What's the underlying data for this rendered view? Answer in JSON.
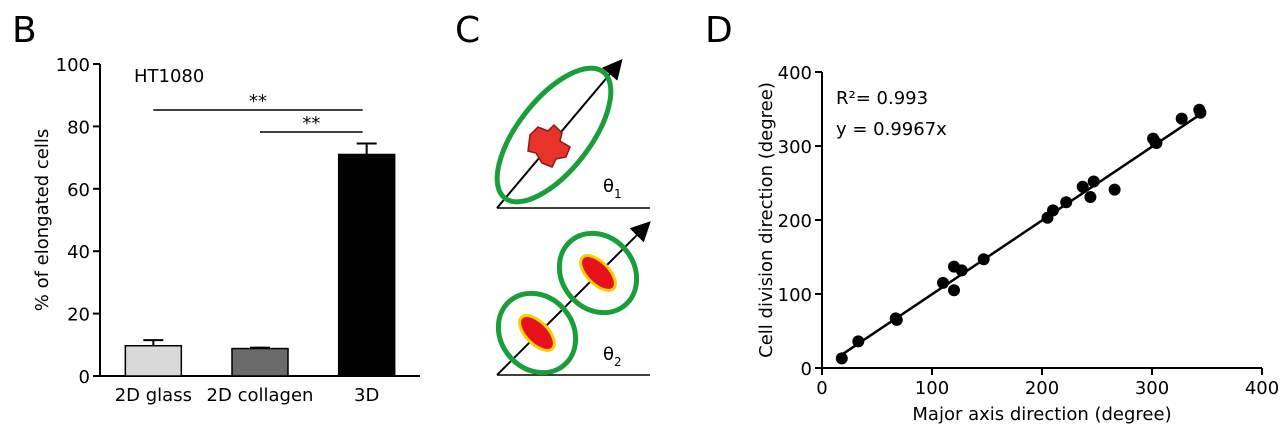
{
  "chart_data": [
    {
      "type": "bar",
      "panel": "B",
      "annotation": "HT1080",
      "ylabel": "% of elongated cells",
      "categories": [
        "2D glass",
        "2D collagen",
        "3D"
      ],
      "values": [
        9.7,
        8.8,
        71
      ],
      "errors": [
        1.8,
        0.3,
        3.5
      ],
      "colors": [
        "#d9d9d9",
        "#6b6b6b",
        "#000000"
      ],
      "ylim": [
        0,
        100
      ],
      "yticks": [
        0,
        20,
        40,
        60,
        80,
        100
      ],
      "significance": [
        {
          "label": "**",
          "between": [
            0,
            2
          ]
        },
        {
          "label": "**",
          "between": [
            1,
            2
          ]
        }
      ]
    },
    {
      "type": "scatter",
      "panel": "D",
      "xlabel": "Major axis direction (degree)",
      "ylabel": "Cell division direction (degree)",
      "annotations": [
        "R²= 0.993",
        "y = 0.9967x"
      ],
      "fit_slope": 0.9967,
      "color": "#000000",
      "x": [
        18,
        33,
        67,
        68,
        110,
        120,
        120,
        127,
        147,
        205,
        210,
        222,
        237,
        244,
        247,
        266,
        301,
        303,
        304,
        327,
        343,
        344
      ],
      "values": [
        13,
        36,
        67,
        65,
        115,
        137,
        105,
        132,
        147,
        203,
        213,
        224,
        245,
        231,
        252,
        241,
        310,
        305,
        304,
        337,
        349,
        345
      ],
      "xlim": [
        0,
        400
      ],
      "xticks": [
        0,
        100,
        200,
        300,
        400
      ],
      "ylim": [
        0,
        400
      ],
      "yticks": [
        0,
        100,
        200,
        300,
        400
      ]
    }
  ],
  "diagram": {
    "panel": "C",
    "angles": [
      {
        "symbol": "θ",
        "subscript": "1"
      },
      {
        "symbol": "θ",
        "subscript": "2"
      }
    ]
  }
}
